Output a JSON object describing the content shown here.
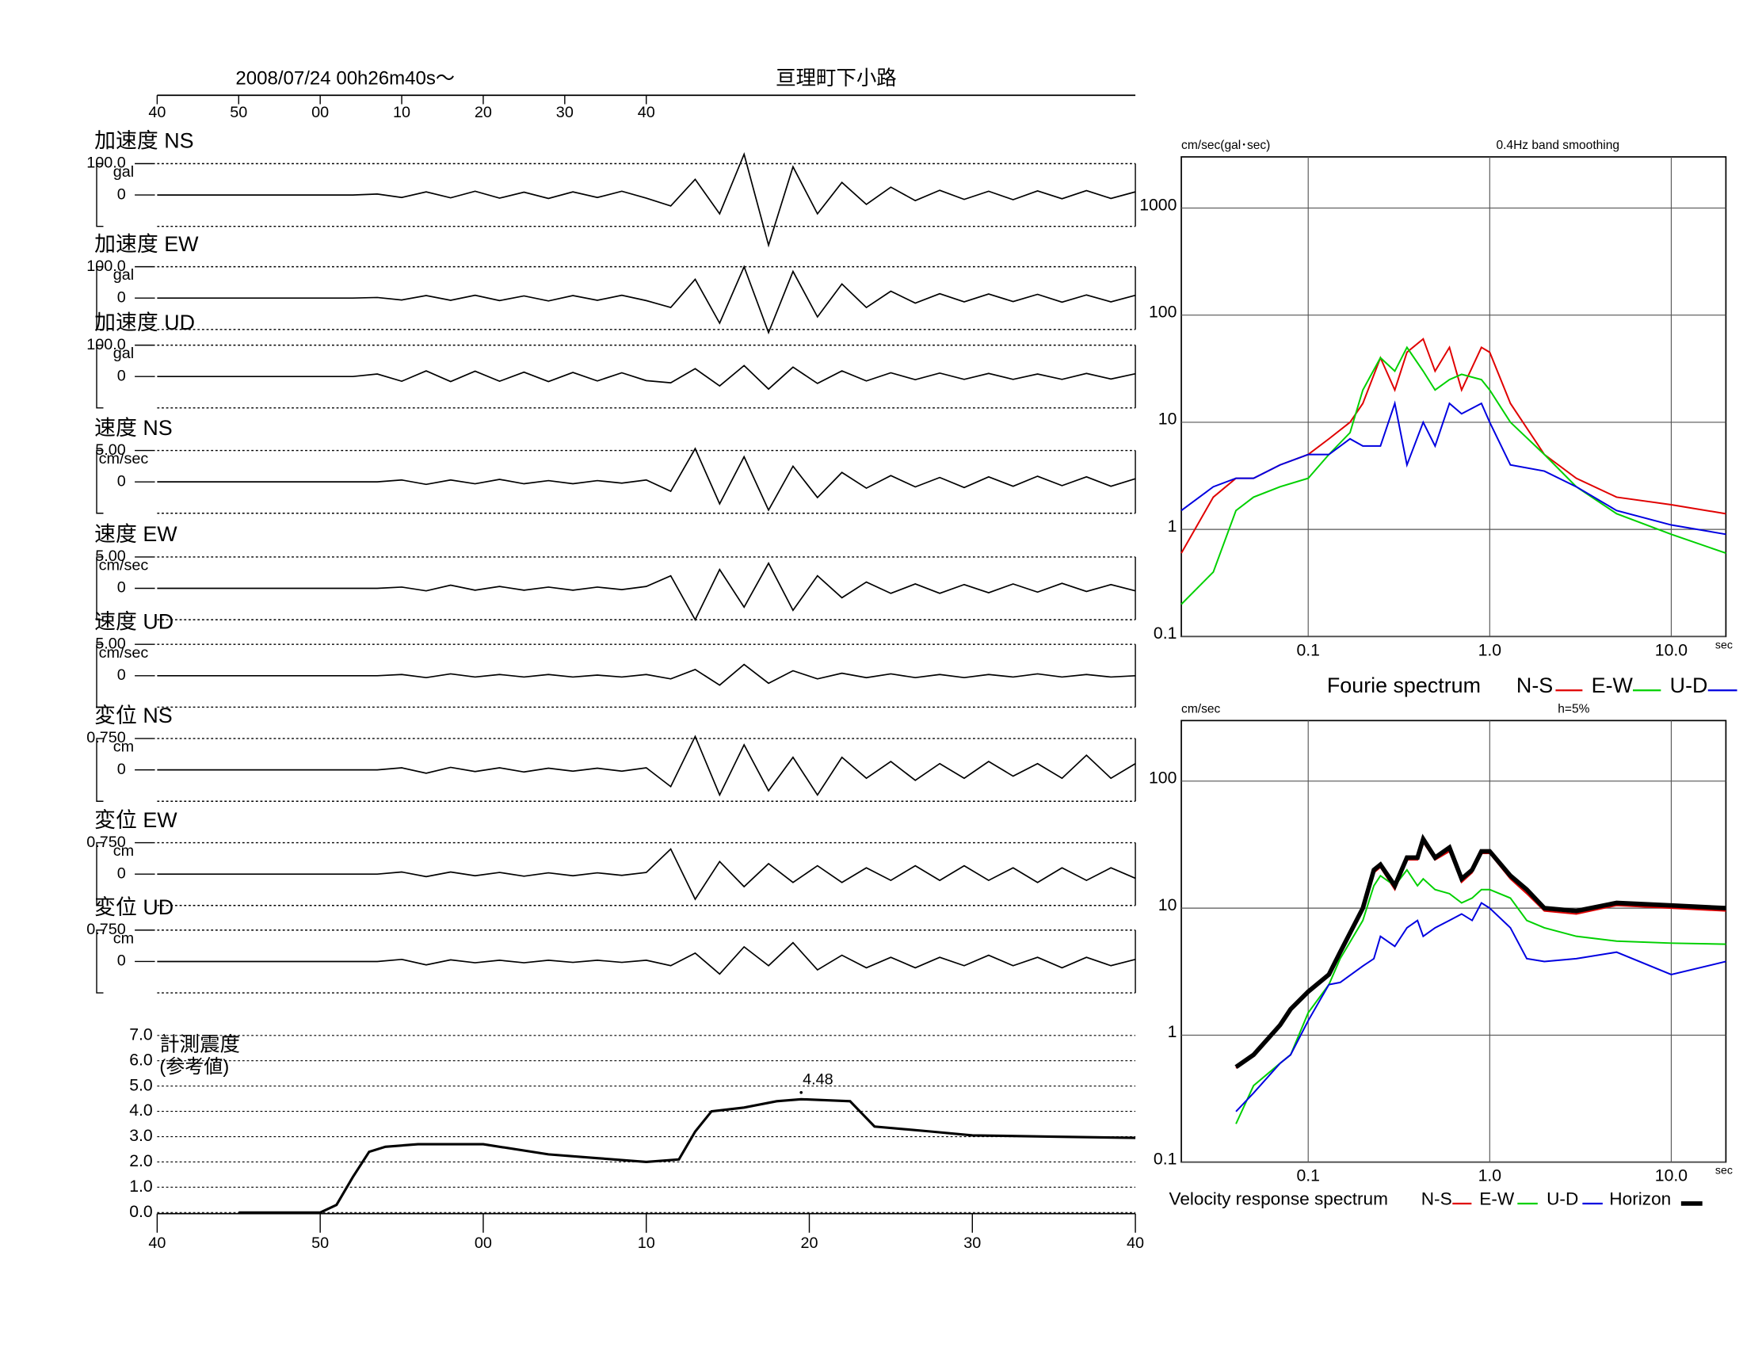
{
  "chart_data": [
    {
      "type": "waveform",
      "title": "亘理町下小路",
      "subtitle": "2008/07/24  00h26m40s～",
      "xlim": [
        0,
        120
      ],
      "xticks": [
        {
          "value": 0,
          "label": "40"
        },
        {
          "value": 10,
          "label": "50"
        },
        {
          "value": 20,
          "label": "00"
        },
        {
          "value": 30,
          "label": "10"
        },
        {
          "value": 40,
          "label": "20"
        },
        {
          "value": 50,
          "label": "30"
        },
        {
          "value": 60,
          "label": "40"
        }
      ],
      "x": [
        0,
        3,
        6,
        9,
        12,
        15,
        18,
        21,
        24,
        27,
        30,
        33,
        36,
        39,
        42,
        45,
        48,
        51,
        54,
        57,
        60,
        63,
        66,
        69,
        72,
        75,
        78,
        81,
        84,
        87,
        90,
        93,
        96,
        99,
        102,
        105,
        108,
        111,
        114,
        117,
        120
      ],
      "panels": [
        {
          "label": "加速度 NS",
          "unit": "gal",
          "ylim": [
            -100,
            100
          ],
          "yticks": [
            0,
            {
              "value": 100,
              "label": "100.0"
            }
          ],
          "values": [
            0,
            0,
            0,
            0,
            0,
            0,
            0,
            0,
            0,
            3,
            -8,
            10,
            -9,
            12,
            -10,
            9,
            -11,
            10,
            -8,
            12,
            -10,
            -35,
            50,
            -60,
            130,
            -160,
            90,
            -60,
            40,
            -30,
            25,
            -18,
            15,
            -14,
            12,
            -15,
            13,
            -12,
            14,
            -11,
            10
          ]
        },
        {
          "label": "加速度 EW",
          "unit": "gal",
          "ylim": [
            -100,
            100
          ],
          "yticks": [
            0,
            {
              "value": 100,
              "label": "100.0"
            }
          ],
          "values": [
            0,
            0,
            0,
            0,
            0,
            0,
            0,
            0,
            0,
            2,
            -6,
            8,
            -7,
            9,
            -8,
            7,
            -9,
            8,
            -7,
            9,
            -8,
            -30,
            60,
            -80,
            100,
            -110,
            85,
            -60,
            45,
            -30,
            22,
            -16,
            14,
            -12,
            13,
            -11,
            12,
            -13,
            10,
            -12,
            9
          ]
        },
        {
          "label": "加速度 UD",
          "unit": "gal",
          "ylim": [
            -100,
            100
          ],
          "yticks": [
            0,
            {
              "value": 100,
              "label": "100.0"
            }
          ],
          "values": [
            0,
            0,
            0,
            0,
            0,
            0,
            0,
            0,
            0,
            8,
            -15,
            18,
            -16,
            17,
            -15,
            14,
            -16,
            13,
            -14,
            12,
            -13,
            -20,
            25,
            -30,
            35,
            -40,
            30,
            -22,
            18,
            -14,
            12,
            -10,
            11,
            -9,
            10,
            -9,
            8,
            -9,
            10,
            -8,
            9
          ]
        },
        {
          "label": "速度 NS",
          "unit": "cm/sec",
          "ylim": [
            -5,
            5
          ],
          "yticks": [
            0,
            {
              "value": 5,
              "label": "5.00"
            }
          ],
          "values": [
            0,
            0,
            0,
            0,
            0,
            0,
            0,
            0,
            0,
            0,
            0.3,
            -0.4,
            0.3,
            -0.3,
            0.4,
            -0.3,
            0.2,
            -0.3,
            0.2,
            -0.2,
            0.3,
            -1.5,
            5.3,
            -3.5,
            4,
            -4.5,
            2.5,
            -2.5,
            1.5,
            -1,
            1,
            -0.8,
            0.7,
            -0.9,
            0.8,
            -0.7,
            0.9,
            -0.6,
            0.8,
            -0.7,
            0.5
          ]
        },
        {
          "label": "速度 EW",
          "unit": "cm/sec",
          "ylim": [
            -5,
            5
          ],
          "yticks": [
            0,
            {
              "value": 5,
              "label": "5.00"
            }
          ],
          "values": [
            0,
            0,
            0,
            0,
            0,
            0,
            0,
            0,
            0,
            0,
            0.2,
            -0.4,
            0.5,
            -0.3,
            0.3,
            -0.3,
            0.2,
            -0.3,
            0.2,
            -0.2,
            0.3,
            2,
            -5,
            3,
            -3,
            4,
            -3.5,
            2,
            -1.5,
            1,
            -0.8,
            0.7,
            -0.8,
            0.6,
            -0.7,
            0.7,
            -0.6,
            0.8,
            -0.5,
            0.6,
            -0.4
          ]
        },
        {
          "label": "速度 UD",
          "unit": "cm/sec",
          "ylim": [
            -5,
            5
          ],
          "yticks": [
            0,
            {
              "value": 5,
              "label": "5.00"
            }
          ],
          "values": [
            0,
            0,
            0,
            0,
            0,
            0,
            0,
            0,
            0,
            0,
            0.2,
            -0.3,
            0.3,
            -0.2,
            0.2,
            -0.2,
            0.2,
            -0.2,
            0.1,
            -0.2,
            0.2,
            -0.5,
            1,
            -1.5,
            1.8,
            -1.2,
            0.8,
            -0.5,
            0.4,
            -0.3,
            0.3,
            -0.3,
            0.2,
            -0.3,
            0.2,
            -0.2,
            0.3,
            -0.2,
            0.2,
            -0.2,
            0
          ]
        },
        {
          "label": "変位 NS",
          "unit": "cm",
          "ylim": [
            -0.75,
            0.75
          ],
          "yticks": [
            0,
            {
              "value": 0.75,
              "label": "0.750"
            }
          ],
          "values": [
            0,
            0,
            0,
            0,
            0,
            0,
            0,
            0,
            0,
            0,
            0.05,
            -0.08,
            0.06,
            -0.04,
            0.05,
            -0.05,
            0.04,
            -0.03,
            0.04,
            -0.03,
            0.05,
            -0.4,
            0.8,
            -0.6,
            0.6,
            -0.5,
            0.3,
            -0.6,
            0.3,
            -0.2,
            0.2,
            -0.25,
            0.15,
            -0.2,
            0.2,
            -0.15,
            0.15,
            -0.2,
            0.35,
            -0.2,
            0.15
          ]
        },
        {
          "label": "変位 EW",
          "unit": "cm",
          "ylim": [
            -0.75,
            0.75
          ],
          "yticks": [
            0,
            {
              "value": 0.75,
              "label": "0.750"
            }
          ],
          "values": [
            0,
            0,
            0,
            0,
            0,
            0,
            0,
            0,
            0,
            0,
            0.05,
            -0.06,
            0.05,
            -0.04,
            0.04,
            -0.05,
            0.03,
            -0.04,
            0.03,
            -0.03,
            0.04,
            0.6,
            -0.6,
            0.3,
            -0.3,
            0.25,
            -0.2,
            0.2,
            -0.2,
            0.15,
            -0.15,
            0.2,
            -0.15,
            0.2,
            -0.15,
            0.15,
            -0.2,
            0.15,
            -0.15,
            0.15,
            -0.1
          ]
        },
        {
          "label": "変位 UD",
          "unit": "cm",
          "ylim": [
            -0.75,
            0.75
          ],
          "yticks": [
            0,
            {
              "value": 0.75,
              "label": "0.750"
            }
          ],
          "values": [
            0,
            0,
            0,
            0,
            0,
            0,
            0,
            0,
            0,
            0,
            0.05,
            -0.08,
            0.04,
            -0.03,
            0.03,
            -0.03,
            0.03,
            -0.02,
            0.03,
            -0.02,
            0.03,
            -0.1,
            0.2,
            -0.3,
            0.35,
            -0.1,
            0.45,
            -0.2,
            0.15,
            -0.15,
            0.1,
            -0.15,
            0.1,
            -0.1,
            0.15,
            -0.1,
            0.1,
            -0.15,
            0.1,
            -0.1,
            0.05
          ]
        }
      ]
    },
    {
      "type": "line",
      "title": "計測震度",
      "subtitle": "(参考値)",
      "xlim": [
        0,
        120
      ],
      "xticks": [
        {
          "value": 0,
          "label": "40"
        },
        {
          "value": 20,
          "label": "50"
        },
        {
          "value": 40,
          "label": "00"
        },
        {
          "value": 60,
          "label": "10"
        },
        {
          "value": 80,
          "label": "20"
        },
        {
          "value": 100,
          "label": "30"
        },
        {
          "value": 120,
          "label": "40"
        }
      ],
      "ylim": [
        0,
        7
      ],
      "yticks": [
        {
          "value": 0,
          "label": "0.0"
        },
        {
          "value": 1,
          "label": "1.0"
        },
        {
          "value": 2,
          "label": "2.0"
        },
        {
          "value": 3,
          "label": "3.0"
        },
        {
          "value": 4,
          "label": "4.0"
        },
        {
          "value": 5,
          "label": "5.0"
        },
        {
          "value": 6,
          "label": "6.0"
        },
        {
          "value": 7,
          "label": "7.0"
        }
      ],
      "x": [
        10,
        20,
        22,
        24,
        26,
        28,
        32,
        40,
        48,
        54,
        60,
        64,
        66,
        68,
        72,
        76,
        79,
        85,
        88,
        95,
        100,
        110,
        120
      ],
      "values": [
        0,
        0,
        0.3,
        1.4,
        2.4,
        2.6,
        2.7,
        2.7,
        2.3,
        2.15,
        2.0,
        2.1,
        3.2,
        4.0,
        4.15,
        4.4,
        4.48,
        4.4,
        3.4,
        3.2,
        3.05,
        3.0,
        2.95
      ],
      "peak": {
        "x": 79,
        "value": 4.48
      }
    },
    {
      "type": "log-line",
      "legend_title": "Fourie spectrum",
      "y_label": "cm/sec(gal･sec)",
      "x_label": "sec",
      "note": "0.4Hz band smoothing",
      "xlim": [
        0.02,
        20
      ],
      "ylim": [
        0.1,
        3000
      ],
      "xticks": [
        0.1,
        {
          "value": 1,
          "label": "1.0"
        },
        {
          "value": 10,
          "label": "10.0"
        }
      ],
      "yticks": [
        0.1,
        1,
        10,
        100,
        1000
      ],
      "x": [
        0.02,
        0.03,
        0.04,
        0.05,
        0.07,
        0.1,
        0.13,
        0.17,
        0.2,
        0.25,
        0.3,
        0.35,
        0.43,
        0.5,
        0.6,
        0.7,
        0.9,
        1.0,
        1.3,
        2,
        3,
        5,
        10,
        20
      ],
      "series": [
        {
          "name": "N-S",
          "color": "#e00000",
          "values": [
            0.6,
            2,
            3,
            3,
            4,
            5,
            7,
            10,
            15,
            40,
            20,
            45,
            60,
            30,
            50,
            20,
            50,
            45,
            15,
            5,
            3,
            2,
            1.7,
            1.4
          ]
        },
        {
          "name": "E-W",
          "color": "#00d000",
          "values": [
            0.2,
            0.4,
            1.5,
            2,
            2.5,
            3,
            5,
            8,
            20,
            40,
            30,
            50,
            30,
            20,
            25,
            28,
            25,
            20,
            10,
            5,
            2.5,
            1.4,
            0.9,
            0.6
          ]
        },
        {
          "name": "U-D",
          "color": "#0000e0",
          "values": [
            1.5,
            2.5,
            3,
            3,
            4,
            5,
            5,
            7,
            6,
            6,
            15,
            4,
            10,
            6,
            15,
            12,
            15,
            10,
            4,
            3.5,
            2.5,
            1.5,
            1.1,
            0.9
          ]
        }
      ]
    },
    {
      "type": "log-line",
      "legend_title": "Velocity response spectrum",
      "y_label": "cm/sec",
      "x_label": "sec",
      "note": "h=5%",
      "xlim": [
        0.02,
        20
      ],
      "ylim": [
        0.1,
        300
      ],
      "xticks": [
        0.1,
        {
          "value": 1,
          "label": "1.0"
        },
        {
          "value": 10,
          "label": "10.0"
        }
      ],
      "yticks": [
        0.1,
        1,
        10,
        100
      ],
      "x": [
        0.04,
        0.05,
        0.07,
        0.08,
        0.1,
        0.13,
        0.15,
        0.2,
        0.23,
        0.25,
        0.3,
        0.35,
        0.4,
        0.43,
        0.5,
        0.6,
        0.7,
        0.8,
        0.9,
        1.0,
        1.3,
        1.6,
        2,
        3,
        5,
        10,
        20
      ],
      "series": [
        {
          "name": "N-S",
          "color": "#e00000",
          "values": [
            0.55,
            0.7,
            1.2,
            1.6,
            2.2,
            3,
            4.5,
            10,
            19,
            21,
            14,
            24,
            24,
            33,
            24,
            28,
            16,
            19,
            27,
            27,
            17,
            13,
            9.5,
            9,
            10.5,
            10,
            9.5
          ]
        },
        {
          "name": "E-W",
          "color": "#00d000",
          "values": [
            0.2,
            0.4,
            0.6,
            0.7,
            1.5,
            2.5,
            4,
            8,
            15,
            18,
            15,
            20,
            15,
            17,
            14,
            13,
            11,
            12,
            14,
            14,
            12,
            8,
            7,
            6,
            5.5,
            5.3,
            5.2
          ]
        },
        {
          "name": "U-D",
          "color": "#0000e0",
          "values": [
            0.25,
            0.35,
            0.6,
            0.7,
            1.3,
            2.5,
            2.6,
            3.5,
            4,
            6,
            5,
            7,
            8,
            6,
            7,
            8,
            9,
            8,
            11,
            10,
            7,
            4,
            3.8,
            4,
            4.5,
            3,
            3.8
          ]
        },
        {
          "name": "Horizon",
          "color": "#000000",
          "width": 4,
          "values": [
            0.56,
            0.7,
            1.2,
            1.6,
            2.2,
            3,
            4.5,
            10,
            20,
            22,
            15,
            25,
            25,
            35,
            25,
            30,
            17,
            20,
            28,
            28,
            18,
            14,
            10,
            9.5,
            11,
            10.5,
            10
          ]
        }
      ]
    }
  ]
}
